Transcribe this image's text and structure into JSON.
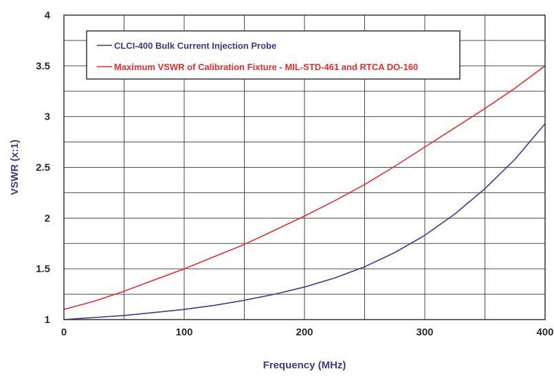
{
  "chart_data": {
    "type": "line",
    "title": "",
    "xlabel": "Frequency (MHz)",
    "ylabel": "VSWR (x:1)",
    "xlim": [
      0,
      400
    ],
    "ylim": [
      1,
      4
    ],
    "grid": true,
    "legend_position": "top-left",
    "x_ticks": [
      "0",
      "100",
      "200",
      "300",
      "400"
    ],
    "y_ticks": [
      "1",
      "1.5",
      "2",
      "2.5",
      "3",
      "3.5",
      "4"
    ],
    "series": [
      {
        "name": "CLCI-400 Bulk Current Injection Probe",
        "color": "#3a3a8c",
        "x": [
          0,
          25,
          50,
          75,
          100,
          125,
          150,
          175,
          200,
          225,
          250,
          275,
          300,
          325,
          350,
          375,
          400
        ],
        "y": [
          1.0,
          1.02,
          1.04,
          1.07,
          1.1,
          1.14,
          1.19,
          1.25,
          1.32,
          1.41,
          1.52,
          1.66,
          1.83,
          2.04,
          2.29,
          2.58,
          2.93
        ]
      },
      {
        "name": "Maximum VSWR of Calibration Fixture - MIL-STD-461 and RTCA DO-160",
        "color": "#ee2b2b",
        "x": [
          0,
          25,
          50,
          75,
          100,
          125,
          150,
          175,
          200,
          225,
          250,
          275,
          300,
          325,
          350,
          375,
          400
        ],
        "y": [
          1.1,
          1.18,
          1.28,
          1.39,
          1.5,
          1.62,
          1.74,
          1.88,
          2.02,
          2.17,
          2.33,
          2.51,
          2.7,
          2.89,
          3.08,
          3.28,
          3.5
        ]
      }
    ]
  },
  "colors": {
    "axis_title": "#3a3a8c",
    "grid": "#4a4a4a",
    "frame": "#333333"
  }
}
